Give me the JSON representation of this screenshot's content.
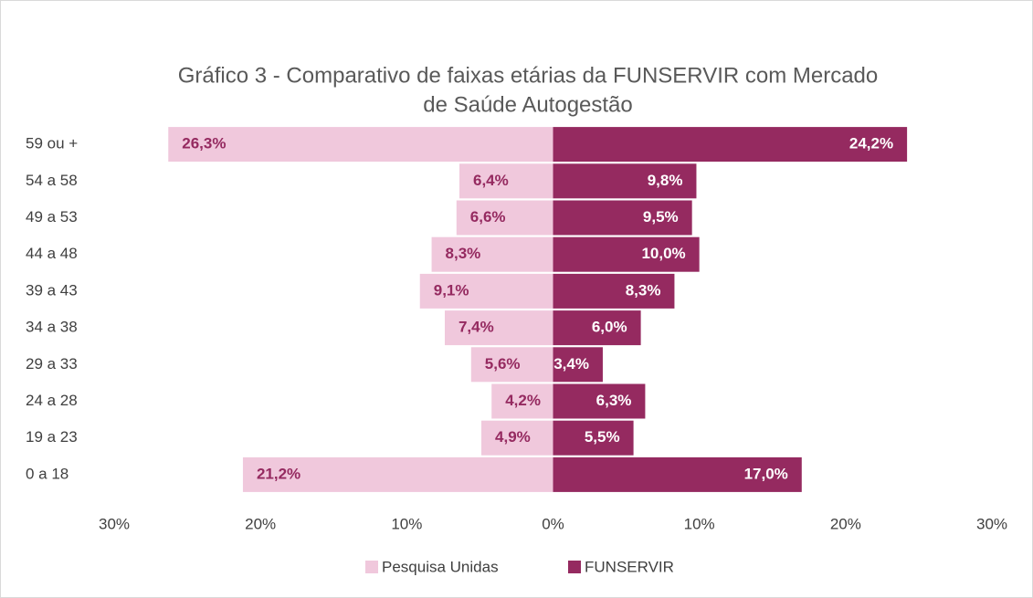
{
  "chart_data": {
    "type": "butterfly_bar",
    "title": [
      "Gráfico 3 - Comparativo de faixas etárias da FUNSERVIR com Mercado",
      "de Saúde Autogestão"
    ],
    "categories": [
      "59 ou +",
      "54 a 58",
      "49 a 53",
      "44 a 48",
      "39 a 43",
      "34 a 38",
      "29 a 33",
      "24 a 28",
      "19 a 23",
      "0 a 18"
    ],
    "series": [
      {
        "name": "Pesquisa Unidas",
        "color": "#f0c8dc",
        "label_color": "#952a60",
        "values": [
          -26.3,
          -6.4,
          -6.6,
          -8.3,
          -9.1,
          -7.4,
          -5.6,
          -4.2,
          -4.9,
          -21.2
        ],
        "value_labels": [
          "26,3%",
          "6,4%",
          "6,6%",
          "8,3%",
          "9,1%",
          "7,4%",
          "5,6%",
          "4,2%",
          "4,9%",
          "21,2%"
        ]
      },
      {
        "name": "FUNSERVIR",
        "color": "#952a60",
        "label_color": "#ffffff",
        "values": [
          24.2,
          9.8,
          9.5,
          10.0,
          8.3,
          6.0,
          3.4,
          6.3,
          5.5,
          17.0
        ],
        "value_labels": [
          "24,2%",
          "9,8%",
          "9,5%",
          "10,0%",
          "8,3%",
          "6,0%",
          "3,4%",
          "6,3%",
          "5,5%",
          "17,0%"
        ]
      }
    ],
    "xlim": [
      -30,
      30
    ],
    "xticks": [
      {
        "value": -30,
        "label": "30%"
      },
      {
        "value": -20,
        "label": "20%"
      },
      {
        "value": -10,
        "label": "10%"
      },
      {
        "value": 0,
        "label": "0%"
      },
      {
        "value": 10,
        "label": "10%"
      },
      {
        "value": 20,
        "label": "20%"
      },
      {
        "value": 30,
        "label": "30%"
      }
    ],
    "legend": "bottom"
  }
}
